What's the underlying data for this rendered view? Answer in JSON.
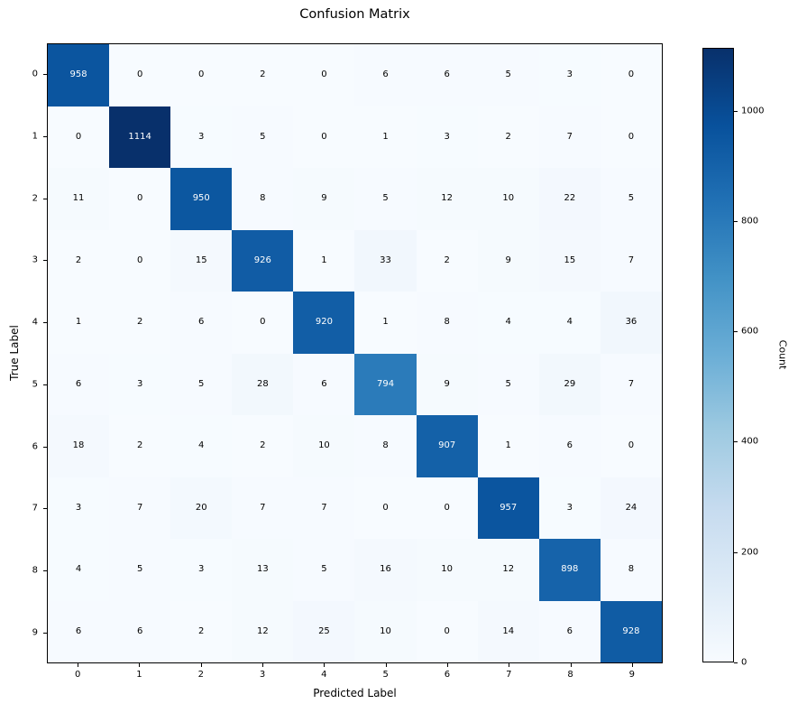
{
  "chart_data": {
    "type": "heatmap",
    "title": "Confusion Matrix",
    "xlabel": "Predicted Label",
    "ylabel": "True Label",
    "x_tick_labels": [
      "0",
      "1",
      "2",
      "3",
      "4",
      "5",
      "6",
      "7",
      "8",
      "9"
    ],
    "y_tick_labels": [
      "0",
      "1",
      "2",
      "3",
      "4",
      "5",
      "6",
      "7",
      "8",
      "9"
    ],
    "matrix": [
      [
        958,
        0,
        0,
        2,
        0,
        6,
        6,
        5,
        3,
        0
      ],
      [
        0,
        1114,
        3,
        5,
        0,
        1,
        3,
        2,
        7,
        0
      ],
      [
        11,
        0,
        950,
        8,
        9,
        5,
        12,
        10,
        22,
        5
      ],
      [
        2,
        0,
        15,
        926,
        1,
        33,
        2,
        9,
        15,
        7
      ],
      [
        1,
        2,
        6,
        0,
        920,
        1,
        8,
        4,
        4,
        36
      ],
      [
        6,
        3,
        5,
        28,
        6,
        794,
        9,
        5,
        29,
        7
      ],
      [
        18,
        2,
        4,
        2,
        10,
        8,
        907,
        1,
        6,
        0
      ],
      [
        3,
        7,
        20,
        7,
        7,
        0,
        0,
        957,
        3,
        24
      ],
      [
        4,
        5,
        3,
        13,
        5,
        16,
        10,
        12,
        898,
        8
      ],
      [
        6,
        6,
        2,
        12,
        25,
        10,
        0,
        14,
        6,
        928
      ]
    ],
    "vmin": 0,
    "vmax": 1114,
    "colormap": {
      "name": "Blues",
      "stops": [
        "#f7fbff",
        "#deebf7",
        "#c6dbef",
        "#9ecae1",
        "#6baed6",
        "#4292c6",
        "#2171b5",
        "#08519c",
        "#08306b"
      ]
    },
    "cell_text_color_light": "#ffffff",
    "cell_text_color_dark": "#000000",
    "colorbar": {
      "label": "Count",
      "ticks": [
        0,
        200,
        400,
        600,
        800,
        1000
      ]
    },
    "legend_position": "right",
    "grid": false
  }
}
